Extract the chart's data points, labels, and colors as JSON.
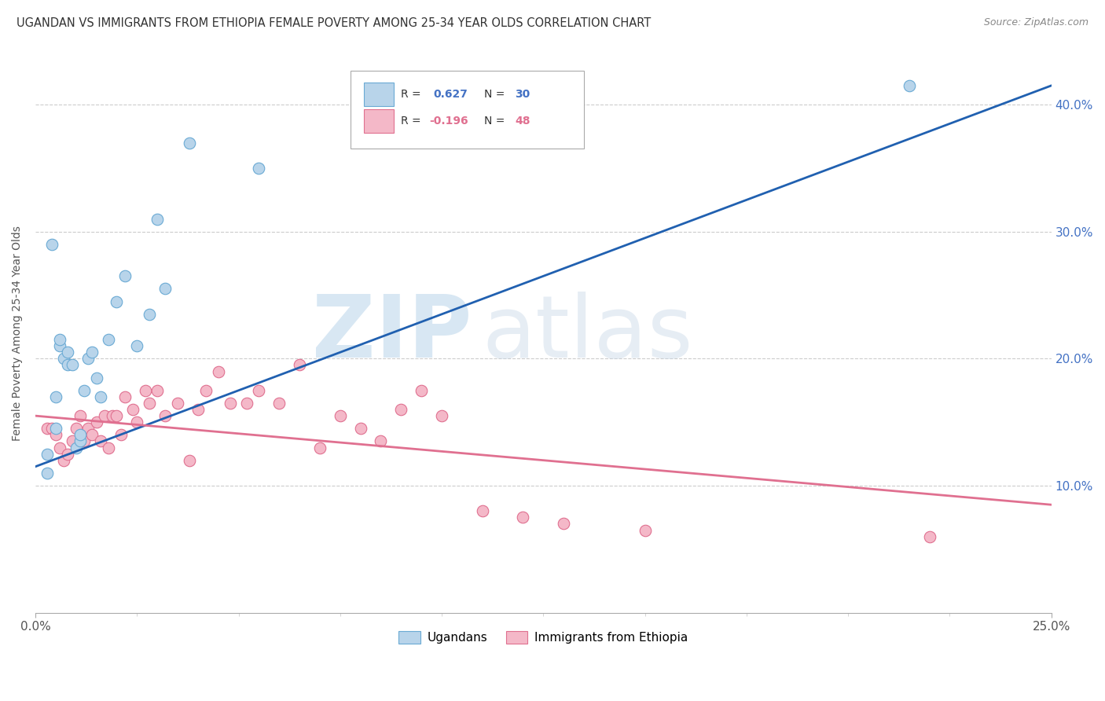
{
  "title": "UGANDAN VS IMMIGRANTS FROM ETHIOPIA FEMALE POVERTY AMONG 25-34 YEAR OLDS CORRELATION CHART",
  "source": "Source: ZipAtlas.com",
  "ylabel": "Female Poverty Among 25-34 Year Olds",
  "xlim": [
    0.0,
    0.25
  ],
  "ylim": [
    0.0,
    0.44
  ],
  "xtick_labels": [
    "0.0%",
    "25.0%"
  ],
  "xtick_vals": [
    0.0,
    0.25
  ],
  "ytick_vals": [
    0.1,
    0.2,
    0.3,
    0.4
  ],
  "ytick_labels": [
    "10.0%",
    "20.0%",
    "30.0%",
    "40.0%"
  ],
  "ugandans_label": "Ugandans",
  "ethiopia_label": "Immigrants from Ethiopia",
  "ugandans_color": "#b8d4ea",
  "ugandans_edge": "#6aaad4",
  "ethiopia_color": "#f4b8c8",
  "ethiopia_edge": "#e07090",
  "trendline_blue": "#2060b0",
  "trendline_pink": "#e07090",
  "watermark_zip": "ZIP",
  "watermark_atlas": "atlas",
  "ugandans_x": [
    0.003,
    0.003,
    0.004,
    0.005,
    0.005,
    0.006,
    0.006,
    0.007,
    0.008,
    0.008,
    0.009,
    0.01,
    0.011,
    0.011,
    0.012,
    0.013,
    0.014,
    0.015,
    0.016,
    0.018,
    0.02,
    0.022,
    0.025,
    0.028,
    0.03,
    0.032,
    0.038,
    0.055,
    0.09,
    0.215
  ],
  "ugandans_y": [
    0.11,
    0.125,
    0.29,
    0.145,
    0.17,
    0.21,
    0.215,
    0.2,
    0.195,
    0.205,
    0.195,
    0.13,
    0.135,
    0.14,
    0.175,
    0.2,
    0.205,
    0.185,
    0.17,
    0.215,
    0.245,
    0.265,
    0.21,
    0.235,
    0.31,
    0.255,
    0.37,
    0.35,
    0.41,
    0.415
  ],
  "ethiopia_x": [
    0.003,
    0.004,
    0.005,
    0.006,
    0.007,
    0.008,
    0.009,
    0.01,
    0.011,
    0.012,
    0.013,
    0.014,
    0.015,
    0.016,
    0.017,
    0.018,
    0.019,
    0.02,
    0.021,
    0.022,
    0.024,
    0.025,
    0.027,
    0.028,
    0.03,
    0.032,
    0.035,
    0.038,
    0.04,
    0.042,
    0.045,
    0.048,
    0.052,
    0.055,
    0.06,
    0.065,
    0.07,
    0.075,
    0.08,
    0.085,
    0.09,
    0.095,
    0.1,
    0.11,
    0.12,
    0.13,
    0.15,
    0.22
  ],
  "ethiopia_y": [
    0.145,
    0.145,
    0.14,
    0.13,
    0.12,
    0.125,
    0.135,
    0.145,
    0.155,
    0.135,
    0.145,
    0.14,
    0.15,
    0.135,
    0.155,
    0.13,
    0.155,
    0.155,
    0.14,
    0.17,
    0.16,
    0.15,
    0.175,
    0.165,
    0.175,
    0.155,
    0.165,
    0.12,
    0.16,
    0.175,
    0.19,
    0.165,
    0.165,
    0.175,
    0.165,
    0.195,
    0.13,
    0.155,
    0.145,
    0.135,
    0.16,
    0.175,
    0.155,
    0.08,
    0.075,
    0.07,
    0.065,
    0.06
  ],
  "blue_trend_x": [
    0.0,
    0.25
  ],
  "blue_trend_y": [
    0.115,
    0.415
  ],
  "pink_trend_x": [
    0.0,
    0.25
  ],
  "pink_trend_y": [
    0.155,
    0.085
  ]
}
